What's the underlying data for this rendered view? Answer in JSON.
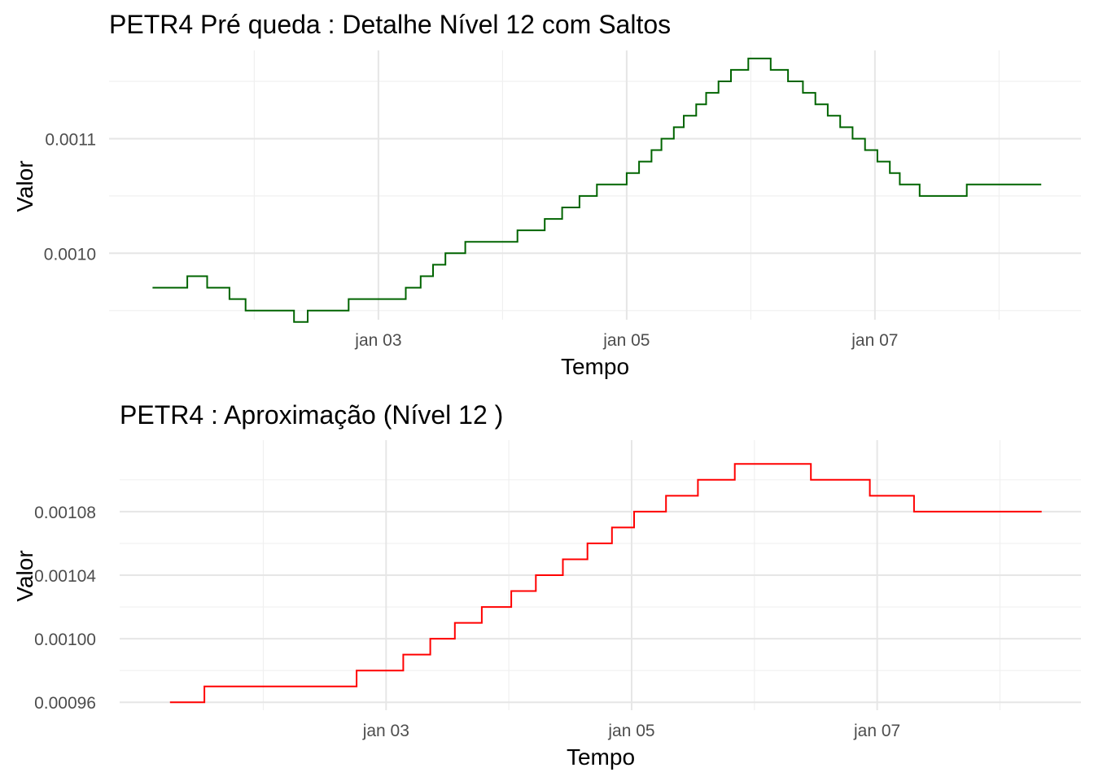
{
  "chart_data": [
    {
      "type": "line",
      "step": "hv",
      "title": "PETR4 Pré queda : Detalhe Nível 12 com Saltos",
      "xlabel": "Tempo",
      "ylabel": "Valor",
      "x_unit": "days (x = 3 → jan 03)",
      "xlim": [
        0.83,
        8.66
      ],
      "ylim": [
        0.000942,
        0.001177
      ],
      "x_ticks": [
        3,
        5,
        7
      ],
      "x_tick_labels": [
        "jan 03",
        "jan 05",
        "jan 07"
      ],
      "x_minor_ticks": [
        2,
        4,
        6,
        8
      ],
      "y_ticks": [
        0.001,
        0.0011
      ],
      "y_tick_labels": [
        "0.0010",
        "0.0011"
      ],
      "y_minor_ticks": [
        0.00095,
        0.00105,
        0.00115
      ],
      "grid": true,
      "color": "#006400",
      "series": [
        {
          "x": [
            1.18,
            1.46,
            1.62,
            1.8,
            1.93,
            2.32,
            2.43,
            2.76,
            3.22,
            3.34,
            3.44,
            3.54,
            3.7,
            4.12,
            4.34,
            4.48,
            4.62,
            4.76,
            5.0,
            5.1,
            5.2,
            5.28,
            5.38,
            5.46,
            5.56,
            5.64,
            5.74,
            5.84,
            5.98,
            6.16,
            6.3,
            6.42,
            6.52,
            6.62,
            6.72,
            6.82,
            6.92,
            7.02,
            7.12,
            7.2,
            7.36,
            7.74,
            8.34
          ],
          "y": [
            0.00097,
            0.00098,
            0.00097,
            0.00096,
            0.00095,
            0.00094,
            0.00095,
            0.00096,
            0.00097,
            0.00098,
            0.00099,
            0.001,
            0.00101,
            0.00102,
            0.00103,
            0.00104,
            0.00105,
            0.00106,
            0.00107,
            0.00108,
            0.00109,
            0.0011,
            0.00111,
            0.00112,
            0.00113,
            0.00114,
            0.00115,
            0.00116,
            0.00117,
            0.00116,
            0.00115,
            0.00114,
            0.00113,
            0.00112,
            0.00111,
            0.0011,
            0.00109,
            0.00108,
            0.00107,
            0.00106,
            0.00105,
            0.00106,
            0.00106
          ]
        }
      ]
    },
    {
      "type": "line",
      "step": "hv",
      "title": "PETR4 : Aproximação (Nível 12 )",
      "xlabel": "Tempo",
      "ylabel": "Valor",
      "x_unit": "days (x = 3 → jan 03)",
      "xlim": [
        0.83,
        8.66
      ],
      "ylim": [
        0.000955,
        0.001125
      ],
      "x_ticks": [
        3,
        5,
        7
      ],
      "x_tick_labels": [
        "jan 03",
        "jan 05",
        "jan 07"
      ],
      "x_minor_ticks": [
        2,
        4,
        6,
        8
      ],
      "y_ticks": [
        0.00096,
        0.001,
        0.00104,
        0.00108
      ],
      "y_tick_labels": [
        "0.00096",
        "0.00100",
        "0.00104",
        "0.00108"
      ],
      "y_minor_ticks": [
        0.00098,
        0.00102,
        0.00106,
        0.0011
      ],
      "grid": true,
      "color": "#ff0000",
      "series": [
        {
          "x": [
            1.24,
            1.52,
            2.76,
            3.14,
            3.36,
            3.56,
            3.78,
            4.02,
            4.22,
            4.44,
            4.64,
            4.84,
            5.02,
            5.28,
            5.54,
            5.84,
            6.46,
            6.94,
            7.3,
            8.34
          ],
          "y": [
            0.00096,
            0.00097,
            0.00098,
            0.00099,
            0.001,
            0.00101,
            0.00102,
            0.00103,
            0.00104,
            0.00105,
            0.00106,
            0.00107,
            0.00108,
            0.00109,
            0.0011,
            0.00111,
            0.0011,
            0.00109,
            0.00108,
            0.00108
          ]
        }
      ]
    }
  ]
}
